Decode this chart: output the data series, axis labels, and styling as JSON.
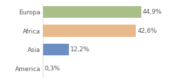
{
  "categories": [
    "Europa",
    "Africa",
    "Asia",
    "America"
  ],
  "values": [
    44.9,
    42.6,
    12.2,
    0.3
  ],
  "labels": [
    "44,9%",
    "42,6%",
    "12,2%",
    "0,3%"
  ],
  "bar_colors": [
    "#a8bf8a",
    "#e8b98a",
    "#6b8fc2",
    "#e8e8e8"
  ],
  "background_color": "#ffffff",
  "figsize": [
    2.8,
    1.2
  ],
  "dpi": 100,
  "xlim": [
    0,
    58
  ],
  "label_fontsize": 6.5,
  "tick_fontsize": 6.5
}
